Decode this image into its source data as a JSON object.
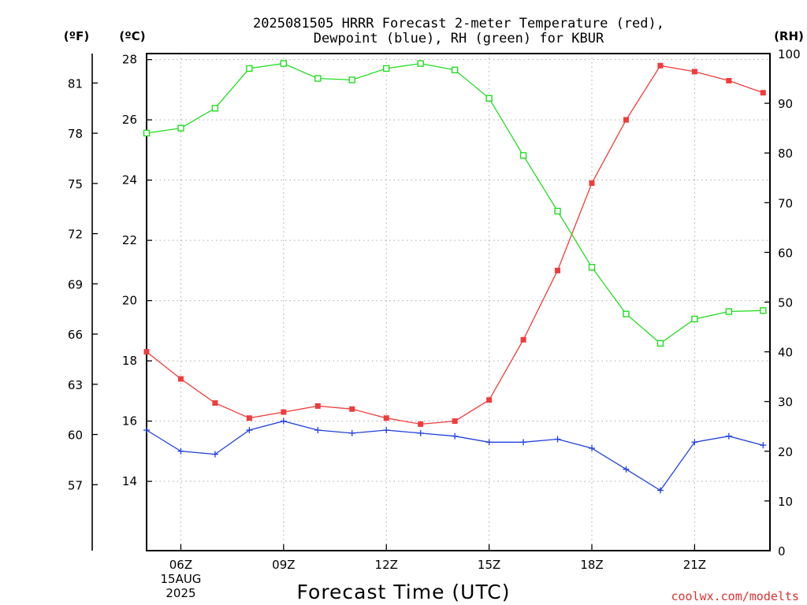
{
  "chart_data": {
    "type": "line",
    "title_lines": [
      "2025081505 HRRR Forecast 2-meter Temperature (red),",
      "Dewpoint (blue), RH (green) for KBUR"
    ],
    "units": {
      "fahrenheit": "(ºF)",
      "celsius": "(ºC)",
      "rh": "(RH)"
    },
    "xlabel": "Forecast Time (UTC)",
    "credit": "coolwx.com/modelts",
    "x": [
      5,
      6,
      7,
      8,
      9,
      10,
      11,
      12,
      13,
      14,
      15,
      16,
      17,
      18,
      19,
      20,
      21,
      22,
      23
    ],
    "xlim": [
      5,
      23.2
    ],
    "x_ticks": [
      {
        "x": 6,
        "lines": [
          "06Z",
          "15AUG",
          "2025"
        ]
      },
      {
        "x": 9,
        "lines": [
          "09Z"
        ]
      },
      {
        "x": 12,
        "lines": [
          "12Z"
        ]
      },
      {
        "x": 15,
        "lines": [
          "15Z"
        ]
      },
      {
        "x": 18,
        "lines": [
          "18Z"
        ]
      },
      {
        "x": 21,
        "lines": [
          "21Z"
        ]
      }
    ],
    "celsius_axis": {
      "range": [
        11.7,
        28.2
      ],
      "ticks": [
        "14",
        "16",
        "18",
        "20",
        "22",
        "24",
        "26",
        "28"
      ]
    },
    "fahrenheit_axis": {
      "ticks": [
        "57",
        "60",
        "63",
        "66",
        "69",
        "72",
        "75",
        "78",
        "81"
      ]
    },
    "rh_axis": {
      "range": [
        0,
        100
      ],
      "ticks": [
        "0",
        "10",
        "20",
        "30",
        "40",
        "50",
        "60",
        "70",
        "80",
        "90",
        "100"
      ]
    },
    "grid": true,
    "series": [
      {
        "name": "Temperature",
        "axis": "celsius",
        "color": "#f03c3c",
        "marker": "filled-square",
        "values": [
          18.3,
          17.4,
          16.6,
          16.1,
          16.3,
          16.5,
          16.4,
          16.1,
          15.9,
          16.0,
          16.7,
          18.7,
          21.0,
          23.9,
          26.0,
          27.8,
          27.6,
          27.3,
          26.9
        ]
      },
      {
        "name": "Dewpoint",
        "axis": "celsius",
        "color": "#2040e0",
        "marker": "plus",
        "values": [
          15.7,
          15.0,
          14.9,
          15.7,
          16.0,
          15.7,
          15.6,
          15.7,
          15.6,
          15.5,
          15.3,
          15.3,
          15.4,
          15.1,
          14.4,
          13.7,
          15.3,
          15.5,
          15.2
        ]
      },
      {
        "name": "RH",
        "axis": "rh",
        "color": "#22dd22",
        "marker": "open-square",
        "values": [
          84,
          85,
          89,
          97,
          98,
          95,
          94.7,
          97,
          98,
          96.7,
          91,
          79.5,
          68.3,
          57,
          47.6,
          41.7,
          46.6,
          48.1,
          48.3
        ]
      }
    ]
  }
}
